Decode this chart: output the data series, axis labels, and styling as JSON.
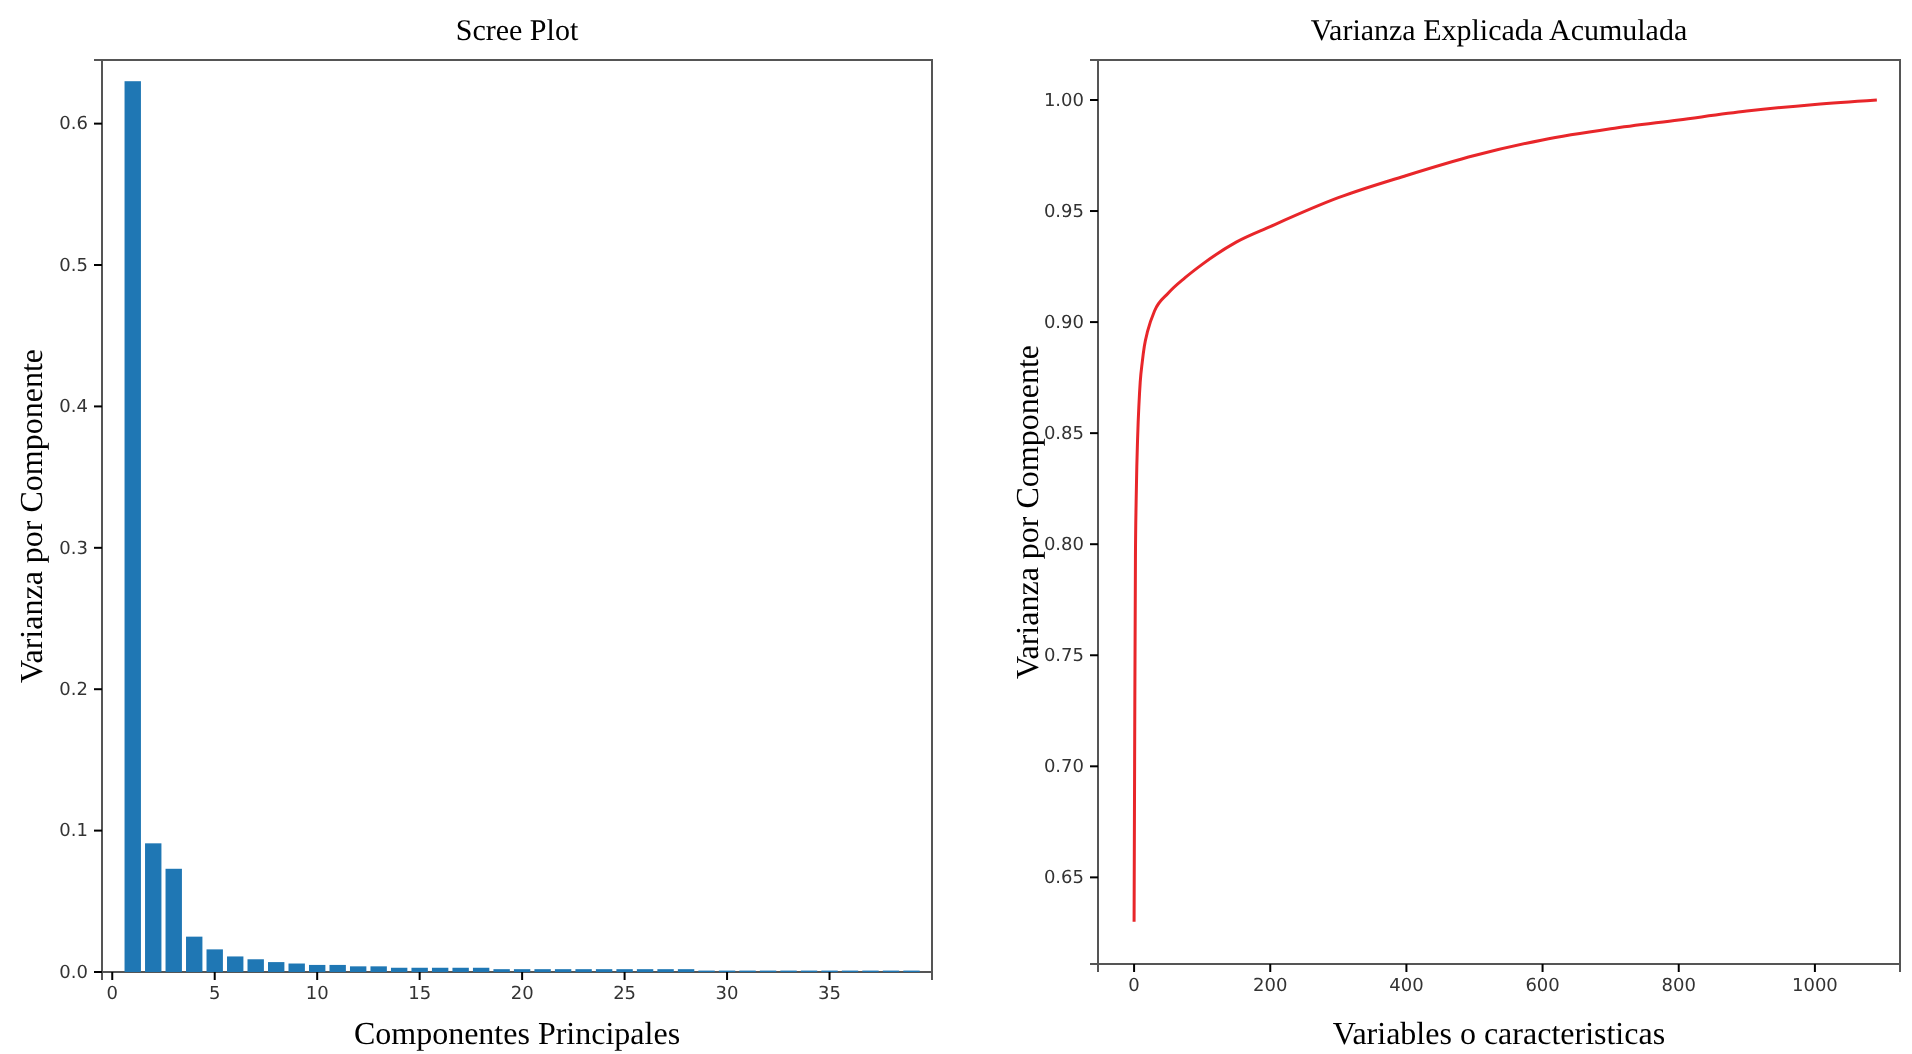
{
  "chart_data": [
    {
      "type": "bar",
      "title": "Scree Plot",
      "xlabel": "Componentes Principales",
      "ylabel": "Varianza por Componente",
      "x": [
        1,
        2,
        3,
        4,
        5,
        6,
        7,
        8,
        9,
        10,
        11,
        12,
        13,
        14,
        15,
        16,
        17,
        18,
        19,
        20,
        21,
        22,
        23,
        24,
        25,
        26,
        27,
        28,
        29,
        30,
        31,
        32,
        33,
        34,
        35,
        36,
        37,
        38,
        39
      ],
      "values": [
        0.63,
        0.091,
        0.073,
        0.025,
        0.016,
        0.011,
        0.009,
        0.007,
        0.006,
        0.005,
        0.005,
        0.004,
        0.004,
        0.003,
        0.003,
        0.003,
        0.003,
        0.003,
        0.002,
        0.002,
        0.002,
        0.002,
        0.002,
        0.002,
        0.002,
        0.002,
        0.002,
        0.002,
        0.001,
        0.001,
        0.001,
        0.001,
        0.001,
        0.001,
        0.001,
        0.001,
        0.001,
        0.001,
        0.001
      ],
      "color": "#1f77b4",
      "xlim": [
        -0.5,
        40
      ],
      "xticks": [
        0,
        5,
        10,
        15,
        20,
        25,
        30,
        35
      ],
      "ylim": [
        0,
        0.645
      ],
      "yticks": [
        {
          "value": 0,
          "label": "0.0"
        },
        0.1,
        0.2,
        0.3,
        0.4,
        0.5,
        0.6
      ],
      "grid": false
    },
    {
      "type": "line",
      "title": "Varianza Explicada Acumulada",
      "xlabel": "Variables o caracteristicas",
      "ylabel": "Varianza por Componente",
      "x": [
        0,
        1,
        2,
        3,
        4,
        5,
        6,
        7,
        8,
        9,
        12,
        15,
        20,
        30,
        50,
        75,
        100,
        150,
        200,
        300,
        400,
        500,
        600,
        700,
        800,
        900,
        1000,
        1091
      ],
      "values": [
        0.63,
        0.721,
        0.794,
        0.819,
        0.835,
        0.846,
        0.855,
        0.862,
        0.868,
        0.873,
        0.882,
        0.889,
        0.896,
        0.905,
        0.913,
        0.92,
        0.926,
        0.936,
        0.943,
        0.956,
        0.966,
        0.975,
        0.982,
        0.987,
        0.991,
        0.995,
        0.998,
        1.0
      ],
      "color": "#e8262a",
      "xlim": [
        -53,
        1125
      ],
      "xticks": [
        0,
        200,
        400,
        600,
        800,
        1000
      ],
      "ylim": [
        0.611,
        1.018
      ],
      "yticks": [
        0.65,
        {
          "value": 0.7,
          "label": "0.70"
        },
        0.75,
        {
          "value": 0.8,
          "label": "0.80"
        },
        0.85,
        {
          "value": 0.9,
          "label": "0.90"
        },
        0.95,
        {
          "value": 1.0,
          "label": "1.00"
        }
      ],
      "grid": false,
      "line_style": "solid",
      "marker": "none"
    }
  ]
}
